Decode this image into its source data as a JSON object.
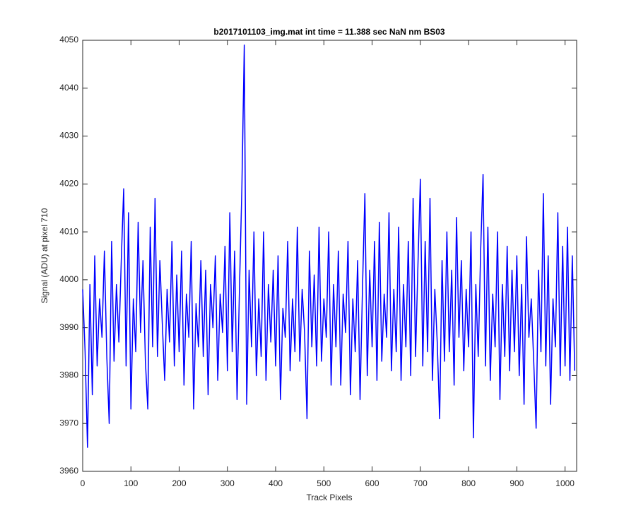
{
  "chart_data": {
    "type": "line",
    "title": "b2017101103_img.mat int time = 11.388 sec  NaN nm BS03",
    "xlabel": "Track Pixels",
    "ylabel": "Signal (ADU) at pixel 710",
    "xlim": [
      0,
      1024
    ],
    "ylim": [
      3960,
      4050
    ],
    "xticks": [
      0,
      100,
      200,
      300,
      400,
      500,
      600,
      700,
      800,
      900,
      1000
    ],
    "yticks": [
      3960,
      3970,
      3980,
      3990,
      4000,
      4010,
      4020,
      4030,
      4040,
      4050
    ],
    "grid": false,
    "x": [
      0,
      5,
      10,
      15,
      20,
      25,
      30,
      35,
      40,
      45,
      50,
      55,
      60,
      65,
      70,
      75,
      80,
      85,
      90,
      95,
      100,
      105,
      110,
      115,
      120,
      125,
      130,
      135,
      140,
      145,
      150,
      155,
      160,
      165,
      170,
      175,
      180,
      185,
      190,
      195,
      200,
      205,
      210,
      215,
      220,
      225,
      230,
      235,
      240,
      245,
      250,
      255,
      260,
      265,
      270,
      275,
      280,
      285,
      290,
      295,
      300,
      305,
      310,
      315,
      320,
      325,
      330,
      335,
      340,
      345,
      350,
      355,
      360,
      365,
      370,
      375,
      380,
      385,
      390,
      395,
      400,
      405,
      410,
      415,
      420,
      425,
      430,
      435,
      440,
      445,
      450,
      455,
      460,
      465,
      470,
      475,
      480,
      485,
      490,
      495,
      500,
      505,
      510,
      515,
      520,
      525,
      530,
      535,
      540,
      545,
      550,
      555,
      560,
      565,
      570,
      575,
      580,
      585,
      590,
      595,
      600,
      605,
      610,
      615,
      620,
      625,
      630,
      635,
      640,
      645,
      650,
      655,
      660,
      665,
      670,
      675,
      680,
      685,
      690,
      695,
      700,
      705,
      710,
      715,
      720,
      725,
      730,
      735,
      740,
      745,
      750,
      755,
      760,
      765,
      770,
      775,
      780,
      785,
      790,
      795,
      800,
      805,
      810,
      815,
      820,
      825,
      830,
      835,
      840,
      845,
      850,
      855,
      860,
      865,
      870,
      875,
      880,
      885,
      890,
      895,
      900,
      905,
      910,
      915,
      920,
      925,
      930,
      935,
      940,
      945,
      950,
      955,
      960,
      965,
      970,
      975,
      980,
      985,
      990,
      995,
      1000,
      1005,
      1010,
      1015,
      1020
    ],
    "series": [
      {
        "color": "#0000ff",
        "values": [
          3998,
          3985,
          3965,
          3999,
          3976,
          4005,
          3982,
          3996,
          3988,
          4006,
          3984,
          3970,
          4008,
          3983,
          3999,
          3987,
          4004,
          4019,
          3982,
          4014,
          3973,
          3996,
          3985,
          4012,
          3989,
          4004,
          3983,
          3973,
          4011,
          3986,
          4017,
          3984,
          4004,
          3991,
          3979,
          3998,
          3987,
          4008,
          3982,
          4001,
          3985,
          4006,
          3978,
          3997,
          3988,
          4008,
          3973,
          3995,
          3986,
          4004,
          3984,
          4002,
          3976,
          3999,
          3990,
          4005,
          3979,
          3997,
          3989,
          4007,
          3981,
          4014,
          3985,
          4006,
          3975,
          3998,
          4019,
          4049,
          3974,
          4002,
          3986,
          4010,
          3980,
          3996,
          3984,
          4010,
          3979,
          3999,
          3987,
          4002,
          3982,
          4005,
          3975,
          3994,
          3988,
          4008,
          3981,
          3996,
          3985,
          4011,
          3983,
          3998,
          3989,
          3971,
          4006,
          3986,
          4001,
          3982,
          4011,
          3983,
          3996,
          3988,
          4010,
          3978,
          3999,
          3986,
          4006,
          3978,
          3997,
          3989,
          4008,
          3976,
          3996,
          3985,
          4004,
          3975,
          3998,
          4018,
          3980,
          4002,
          3986,
          4008,
          3979,
          4012,
          3983,
          3997,
          3988,
          4014,
          3981,
          3998,
          3985,
          4011,
          3979,
          3999,
          3986,
          4008,
          3980,
          4017,
          3984,
          4003,
          4021,
          3982,
          4008,
          3985,
          4017,
          3979,
          3998,
          3987,
          3971,
          4004,
          3983,
          4010,
          3985,
          4002,
          3978,
          4013,
          3988,
          4004,
          3981,
          3998,
          3986,
          4010,
          3967,
          3999,
          3984,
          4006,
          4022,
          3982,
          4011,
          3979,
          3997,
          3986,
          4010,
          3975,
          3999,
          3984,
          4007,
          3981,
          4002,
          3985,
          4005,
          3980,
          3999,
          3974,
          4009,
          3988,
          3996,
          3983,
          3969,
          4002,
          3985,
          4018,
          3982,
          4005,
          3974,
          3996,
          3986,
          4014,
          3980,
          4007,
          3982,
          4011,
          3979,
          4005,
          3981
        ]
      }
    ]
  }
}
